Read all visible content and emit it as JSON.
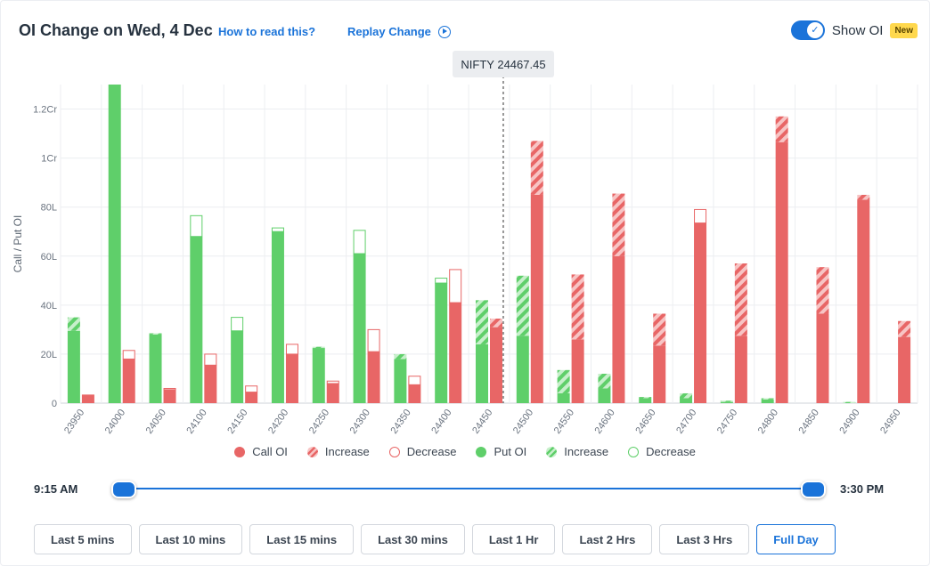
{
  "header": {
    "title": "OI Change on Wed, 4 Dec",
    "how_to_read": "How to read this?",
    "replay": "Replay Change",
    "show_oi_label": "Show OI",
    "new_badge": "New",
    "show_oi_enabled": true
  },
  "chart_data": {
    "type": "bar",
    "ylabel": "Call / Put OI",
    "xlabel": "",
    "yticks": [
      {
        "value": 0,
        "label": "0"
      },
      {
        "value": 20,
        "label": "20L"
      },
      {
        "value": 40,
        "label": "40L"
      },
      {
        "value": 60,
        "label": "60L"
      },
      {
        "value": 80,
        "label": "80L"
      },
      {
        "value": 100,
        "label": "1Cr"
      },
      {
        "value": 120,
        "label": "1.2Cr"
      }
    ],
    "ylim": [
      0,
      130
    ],
    "units": "lakh contracts",
    "grid": true,
    "spot_label": "NIFTY 24467.45",
    "spot_value": 24467.45,
    "categories": [
      "23950",
      "24000",
      "24050",
      "24100",
      "24150",
      "24200",
      "24250",
      "24300",
      "24350",
      "24400",
      "24450",
      "24500",
      "24550",
      "24600",
      "24650",
      "24700",
      "24750",
      "24800",
      "24850",
      "24900",
      "24950"
    ],
    "series": [
      {
        "name": "Put OI",
        "values": [
          29.5,
          130,
          28,
          68,
          29.5,
          70,
          22.5,
          61,
          18,
          49,
          24,
          27.5,
          4,
          6,
          2,
          2,
          0.5,
          1.5,
          0,
          0,
          0
        ]
      },
      {
        "name": "Increase",
        "values": [
          5.5,
          0,
          0.5,
          0,
          0,
          0,
          0.5,
          0,
          2,
          0,
          18,
          24.5,
          9.5,
          6,
          0.5,
          2,
          0.5,
          0.5,
          0,
          0.5,
          0
        ]
      },
      {
        "name": "Decrease",
        "values": [
          0,
          0,
          0,
          8.5,
          5.5,
          1.5,
          0,
          9.5,
          0,
          2,
          0,
          0,
          0,
          0,
          0,
          0,
          0,
          0,
          0,
          0,
          0
        ]
      },
      {
        "name": "Call OI",
        "values": [
          3.5,
          18,
          5.5,
          15.5,
          4.5,
          20,
          8,
          21,
          7.5,
          41,
          31,
          85,
          26,
          60,
          23.5,
          73.5,
          27.5,
          106.5,
          36.5,
          83,
          27
        ]
      },
      {
        "name": "Increase",
        "values": [
          0,
          0,
          0,
          0,
          0,
          0,
          0,
          0,
          0,
          0,
          3.5,
          22,
          26.5,
          25.5,
          13,
          0,
          29.5,
          10.5,
          19,
          2,
          6.5
        ]
      },
      {
        "name": "Decrease",
        "values": [
          0,
          3.5,
          0.5,
          4.5,
          2.5,
          4,
          1,
          9,
          3.5,
          13.5,
          0,
          0,
          0,
          0,
          0,
          5.5,
          0,
          0,
          0,
          0,
          0
        ]
      }
    ],
    "colors": {
      "call": "#e86666",
      "call_light": "#f7c4c4",
      "put": "#5fcf6a",
      "put_light": "#c7efcb"
    }
  },
  "legend": {
    "items": [
      {
        "label": "Call OI",
        "style": "call-solid"
      },
      {
        "label": "Increase",
        "style": "call-inc"
      },
      {
        "label": "Decrease",
        "style": "call-dec"
      },
      {
        "label": "Put OI",
        "style": "put-solid"
      },
      {
        "label": "Increase",
        "style": "put-inc"
      },
      {
        "label": "Decrease",
        "style": "put-dec"
      }
    ]
  },
  "time_slider": {
    "start_label": "9:15 AM",
    "end_label": "3:30 PM"
  },
  "range_buttons": {
    "items": [
      "Last 5 mins",
      "Last 10 mins",
      "Last 15 mins",
      "Last 30 mins",
      "Last 1 Hr",
      "Last 2 Hrs",
      "Last 3 Hrs",
      "Full Day"
    ],
    "active": "Full Day"
  }
}
